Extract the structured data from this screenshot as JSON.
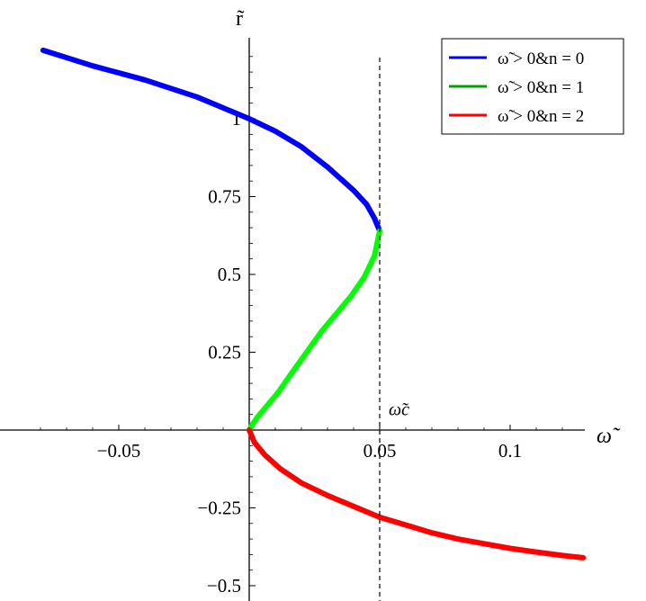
{
  "chart_data": {
    "type": "line",
    "title": "",
    "xlabel": "ω̃",
    "ylabel": "r̃",
    "xlim": [
      -0.085,
      0.13
    ],
    "ylim": [
      -0.52,
      1.3
    ],
    "x_ticks": [
      {
        "value": -0.05,
        "label": "−0.05"
      },
      {
        "value": 0.05,
        "label": "0.05"
      },
      {
        "value": 0.1,
        "label": "0.1"
      }
    ],
    "y_ticks": [
      {
        "value": 1,
        "label": "1"
      },
      {
        "value": 0.75,
        "label": "0.75"
      },
      {
        "value": 0.5,
        "label": "0.5"
      },
      {
        "value": 0.25,
        "label": "0.25"
      },
      {
        "value": -0.25,
        "label": "−0.25"
      },
      {
        "value": -0.5,
        "label": "−0.5"
      }
    ],
    "grid": false,
    "legend_position": "top-right",
    "annotations": [
      {
        "text": "ω̃c",
        "x": 0.05,
        "y": 0.03,
        "kind": "vertical-dashed-line",
        "line_x": 0.05
      }
    ],
    "series": [
      {
        "name": "ω̃ > 0&n = 0",
        "legend_color": "#0000ff",
        "color": "#0000ff",
        "x": [
          -0.079,
          -0.06,
          -0.04,
          -0.02,
          -0.01,
          0.0,
          0.01,
          0.02,
          0.03,
          0.04,
          0.045,
          0.048,
          0.05
        ],
        "y": [
          1.22,
          1.17,
          1.125,
          1.07,
          1.035,
          1.0,
          0.96,
          0.91,
          0.845,
          0.77,
          0.725,
          0.68,
          0.64
        ]
      },
      {
        "name": "ω̃ > 0&n = 1",
        "legend_color": "#00a000",
        "color": "#00ff00",
        "x": [
          0.05,
          0.048,
          0.044,
          0.039,
          0.034,
          0.028,
          0.022,
          0.016,
          0.011,
          0.006,
          0.003,
          0.001,
          0.0
        ],
        "y": [
          0.64,
          0.56,
          0.49,
          0.43,
          0.38,
          0.32,
          0.25,
          0.18,
          0.12,
          0.07,
          0.04,
          0.015,
          0.0
        ]
      },
      {
        "name": "ω̃ > 0&n = 2",
        "legend_color": "#ff0000",
        "color": "#ff0000",
        "x": [
          0.0,
          0.002,
          0.006,
          0.012,
          0.02,
          0.03,
          0.04,
          0.05,
          0.06,
          0.07,
          0.08,
          0.09,
          0.1,
          0.11,
          0.12,
          0.128
        ],
        "y": [
          0.0,
          -0.04,
          -0.08,
          -0.125,
          -0.17,
          -0.21,
          -0.245,
          -0.28,
          -0.305,
          -0.33,
          -0.35,
          -0.365,
          -0.38,
          -0.392,
          -0.403,
          -0.41
        ]
      }
    ]
  }
}
